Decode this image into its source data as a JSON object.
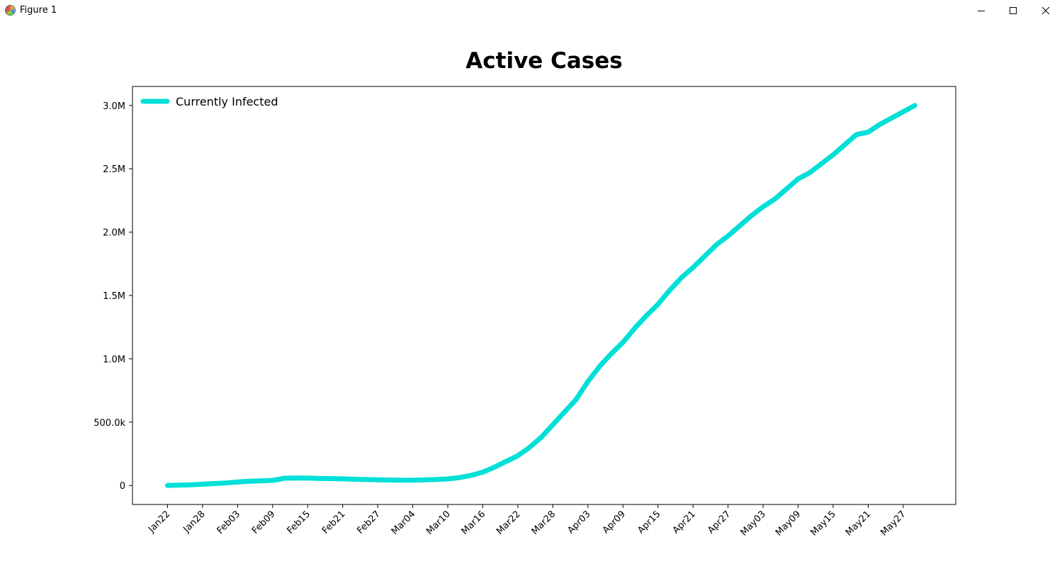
{
  "window": {
    "title": "Figure 1",
    "icon": "matplotlib-figure-icon",
    "controls": [
      "minimize-icon",
      "maximize-icon",
      "close-icon"
    ]
  },
  "chart_data": {
    "type": "line",
    "title": "Active Cases",
    "xlabel": "",
    "ylabel": "",
    "x_tick_labels": [
      "Jan22",
      "Jan28",
      "Feb03",
      "Feb09",
      "Feb15",
      "Feb21",
      "Feb27",
      "Mar04",
      "Mar10",
      "Mar16",
      "Mar22",
      "Mar28",
      "Apr03",
      "Apr09",
      "Apr15",
      "Apr21",
      "Apr27",
      "May03",
      "May09",
      "May15",
      "May21",
      "May27"
    ],
    "y_tick_labels": [
      "0",
      "500.0k",
      "1.0M",
      "1.5M",
      "2.0M",
      "2.5M",
      "3.0M"
    ],
    "y_ticks": [
      0,
      500000,
      1000000,
      1500000,
      2000000,
      2500000,
      3000000
    ],
    "ylim": [
      -150000,
      3150000
    ],
    "xlim": [
      "Jan16",
      "Jun05"
    ],
    "grid": false,
    "legend": {
      "position": "top-left",
      "entries": [
        "Currently Infected"
      ]
    },
    "series": [
      {
        "name": "Currently Infected",
        "color": "#00e0d8",
        "x": [
          "Jan22",
          "Jan24",
          "Jan26",
          "Jan28",
          "Jan30",
          "Feb01",
          "Feb03",
          "Feb05",
          "Feb07",
          "Feb09",
          "Feb11",
          "Feb13",
          "Feb15",
          "Feb17",
          "Feb19",
          "Feb21",
          "Feb23",
          "Feb25",
          "Feb27",
          "Feb29",
          "Mar02",
          "Mar04",
          "Mar06",
          "Mar08",
          "Mar10",
          "Mar12",
          "Mar14",
          "Mar16",
          "Mar18",
          "Mar20",
          "Mar22",
          "Mar24",
          "Mar26",
          "Mar28",
          "Mar30",
          "Apr01",
          "Apr03",
          "Apr05",
          "Apr07",
          "Apr09",
          "Apr11",
          "Apr13",
          "Apr15",
          "Apr17",
          "Apr19",
          "Apr21",
          "Apr23",
          "Apr25",
          "Apr27",
          "Apr29",
          "May01",
          "May03",
          "May05",
          "May07",
          "May09",
          "May11",
          "May13",
          "May15",
          "May17",
          "May19",
          "May21",
          "May23",
          "May25",
          "May27",
          "May29"
        ],
        "values": [
          500,
          2500,
          5000,
          10000,
          15000,
          20000,
          28000,
          33000,
          37000,
          40000,
          57000,
          59000,
          58000,
          56000,
          54000,
          52000,
          49000,
          47000,
          45000,
          43000,
          42000,
          42000,
          44000,
          47000,
          52000,
          62000,
          80000,
          105000,
          145000,
          190000,
          235000,
          300000,
          380000,
          480000,
          580000,
          680000,
          820000,
          940000,
          1040000,
          1130000,
          1240000,
          1340000,
          1430000,
          1540000,
          1640000,
          1720000,
          1810000,
          1900000,
          1970000,
          2050000,
          2130000,
          2200000,
          2260000,
          2340000,
          2420000,
          2470000,
          2540000,
          2610000,
          2690000,
          2770000,
          2790000,
          2850000,
          2900000,
          2950000,
          3000000
        ]
      }
    ]
  }
}
